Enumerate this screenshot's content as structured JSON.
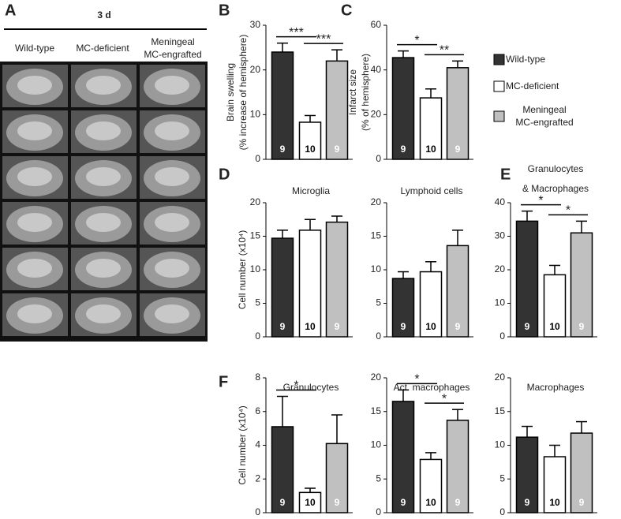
{
  "panel_a": {
    "letter": "A",
    "title": "3 d",
    "columns": [
      [
        "Wild-type"
      ],
      [
        "MC-deficient"
      ],
      [
        "Meningeal",
        "MC-engrafted"
      ]
    ]
  },
  "legend": [
    {
      "name": [
        "Wild-type"
      ],
      "color": "#333333"
    },
    {
      "name": [
        "MC-deficient"
      ],
      "color": "#ffffff"
    },
    {
      "name": [
        "Meningeal",
        "MC-engrafted"
      ],
      "color": "#c0c0c0"
    }
  ],
  "chart_data": [
    {
      "type": "bar",
      "panel": "B",
      "ylabel": [
        "Brain swelling",
        "(% increase of hemisphere)"
      ],
      "values": [
        24,
        8.3,
        22
      ],
      "errors": [
        2,
        1.5,
        2.5
      ],
      "n_labels": [
        "9",
        "10",
        "9"
      ],
      "ylim": [
        0,
        30
      ],
      "yticks": [
        0,
        10,
        20,
        30
      ],
      "significance": [
        {
          "from": 0,
          "to": 1,
          "label": "***"
        },
        {
          "from": 1,
          "to": 2,
          "label": "***"
        }
      ]
    },
    {
      "type": "bar",
      "panel": "C",
      "ylabel": [
        "Infarct size",
        "(% of hemisphere)"
      ],
      "values": [
        45.5,
        27.5,
        41
      ],
      "errors": [
        3,
        4,
        3
      ],
      "n_labels": [
        "9",
        "10",
        "9"
      ],
      "ylim": [
        0,
        60
      ],
      "yticks": [
        0,
        20,
        40,
        60
      ],
      "significance": [
        {
          "from": 0,
          "to": 1,
          "label": "*"
        },
        {
          "from": 1,
          "to": 2,
          "label": "**"
        }
      ]
    },
    {
      "type": "bar",
      "panel": "D",
      "title": [
        "Microglia"
      ],
      "ylabel": [
        "Cell number (x10⁴)"
      ],
      "values": [
        14.7,
        15.9,
        17.1
      ],
      "errors": [
        1.2,
        1.6,
        0.9
      ],
      "n_labels": [
        "9",
        "10",
        "9"
      ],
      "ylim": [
        0,
        20
      ],
      "yticks": [
        0,
        5,
        10,
        15,
        20
      ]
    },
    {
      "type": "bar",
      "title": [
        "Lymphoid cells"
      ],
      "values": [
        8.7,
        9.7,
        13.6
      ],
      "errors": [
        1,
        1.5,
        2.3
      ],
      "n_labels": [
        "9",
        "10",
        "9"
      ],
      "ylim": [
        0,
        20
      ],
      "yticks": [
        0,
        5,
        10,
        15,
        20
      ]
    },
    {
      "type": "bar",
      "panel": "E",
      "title": [
        "Granulocytes",
        "& Macrophages"
      ],
      "values": [
        34.5,
        18.5,
        31
      ],
      "errors": [
        3,
        2.8,
        3.5
      ],
      "n_labels": [
        "9",
        "10",
        "9"
      ],
      "ylim": [
        0,
        40
      ],
      "yticks": [
        0,
        10,
        20,
        30,
        40
      ],
      "significance": [
        {
          "from": 0,
          "to": 1,
          "label": "*"
        },
        {
          "from": 1,
          "to": 2,
          "label": "*"
        }
      ]
    },
    {
      "type": "bar",
      "panel": "F",
      "title": [
        "Granulocytes"
      ],
      "ylabel": [
        "Cell number (x10⁴)"
      ],
      "values": [
        5.1,
        1.2,
        4.1
      ],
      "errors": [
        1.8,
        0.25,
        1.7
      ],
      "n_labels": [
        "9",
        "10",
        "9"
      ],
      "ylim": [
        0,
        8
      ],
      "yticks": [
        0,
        2,
        4,
        6,
        8
      ],
      "significance": [
        {
          "from": 0,
          "to": 1,
          "label": "*"
        }
      ]
    },
    {
      "type": "bar",
      "title": [
        "Act. macrophages"
      ],
      "values": [
        16.5,
        7.9,
        13.7
      ],
      "errors": [
        1.7,
        1,
        1.6
      ],
      "n_labels": [
        "9",
        "10",
        "9"
      ],
      "ylim": [
        0,
        20
      ],
      "yticks": [
        0,
        5,
        10,
        15,
        20
      ],
      "significance": [
        {
          "from": 0,
          "to": 1,
          "label": "*"
        },
        {
          "from": 1,
          "to": 2,
          "label": "*"
        }
      ]
    },
    {
      "type": "bar",
      "title": [
        "Macrophages"
      ],
      "values": [
        11.2,
        8.3,
        11.8
      ],
      "errors": [
        1.6,
        1.7,
        1.7
      ],
      "n_labels": [
        "9",
        "10",
        "9"
      ],
      "ylim": [
        0,
        20
      ],
      "yticks": [
        0,
        5,
        10,
        15,
        20
      ]
    }
  ]
}
